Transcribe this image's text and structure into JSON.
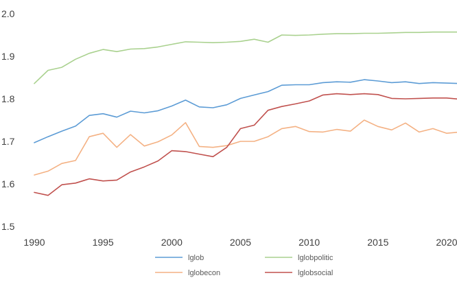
{
  "chart_data": {
    "type": "line",
    "title": "",
    "xlabel": "",
    "ylabel": "",
    "xlim": [
      1990,
      2021
    ],
    "ylim": [
      1.5,
      2.0
    ],
    "x_ticks": [
      1990,
      1995,
      2000,
      2005,
      2010,
      2015,
      2020
    ],
    "x_tick_labels": [
      "1990",
      "1995",
      "2000",
      "2005",
      "2010",
      "2015",
      "2020"
    ],
    "y_ticks": [
      1.5,
      1.6,
      1.7,
      1.8,
      1.9,
      2.0
    ],
    "y_tick_labels": [
      "1.5",
      "1.6",
      "1.7",
      "1.8",
      "1.9",
      "2.0"
    ],
    "grid": false,
    "legend_position": "bottom",
    "x": [
      1990,
      1991,
      1992,
      1993,
      1994,
      1995,
      1996,
      1997,
      1998,
      1999,
      2000,
      2001,
      2002,
      2003,
      2004,
      2005,
      2006,
      2007,
      2008,
      2009,
      2010,
      2011,
      2012,
      2013,
      2014,
      2015,
      2016,
      2017,
      2018,
      2019,
      2020,
      2021
    ],
    "series": [
      {
        "name": "lglob",
        "color": "#5b9bd5",
        "values": [
          1.697,
          1.711,
          1.724,
          1.736,
          1.761,
          1.765,
          1.757,
          1.771,
          1.767,
          1.772,
          1.783,
          1.797,
          1.781,
          1.779,
          1.786,
          1.801,
          1.809,
          1.817,
          1.832,
          1.833,
          1.833,
          1.838,
          1.84,
          1.839,
          1.845,
          1.842,
          1.838,
          1.84,
          1.836,
          1.838,
          1.837,
          1.836
        ]
      },
      {
        "name": "lglobpolitic",
        "color": "#a9d18e",
        "values": [
          1.836,
          1.867,
          1.874,
          1.893,
          1.907,
          1.916,
          1.911,
          1.917,
          1.918,
          1.922,
          1.928,
          1.934,
          1.933,
          1.932,
          1.933,
          1.935,
          1.94,
          1.933,
          1.95,
          1.949,
          1.95,
          1.952,
          1.953,
          1.953,
          1.954,
          1.954,
          1.955,
          1.956,
          1.956,
          1.957,
          1.957,
          1.957
        ]
      },
      {
        "name": "lglobecon",
        "color": "#f4b183",
        "values": [
          1.621,
          1.63,
          1.648,
          1.655,
          1.711,
          1.719,
          1.686,
          1.716,
          1.689,
          1.699,
          1.715,
          1.744,
          1.688,
          1.686,
          1.69,
          1.7,
          1.7,
          1.711,
          1.73,
          1.735,
          1.723,
          1.722,
          1.728,
          1.724,
          1.75,
          1.735,
          1.727,
          1.743,
          1.722,
          1.73,
          1.719,
          1.722
        ]
      },
      {
        "name": "lglobsocial",
        "color": "#c0504d",
        "values": [
          1.58,
          1.573,
          1.598,
          1.602,
          1.612,
          1.607,
          1.609,
          1.628,
          1.64,
          1.654,
          1.678,
          1.676,
          1.67,
          1.664,
          1.686,
          1.73,
          1.738,
          1.773,
          1.782,
          1.788,
          1.795,
          1.809,
          1.812,
          1.81,
          1.812,
          1.81,
          1.801,
          1.8,
          1.801,
          1.802,
          1.802,
          1.799
        ]
      }
    ]
  }
}
